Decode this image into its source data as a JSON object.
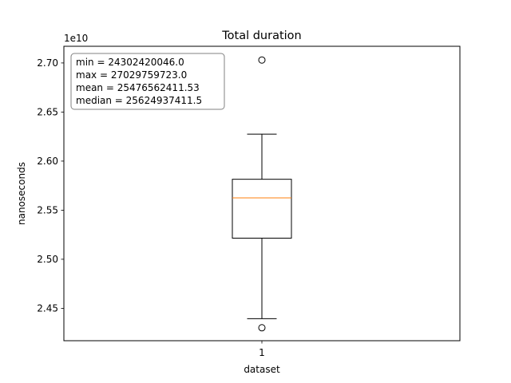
{
  "chart_data": {
    "type": "box",
    "title": "Total duration",
    "xlabel": "dataset",
    "ylabel": "nanoseconds",
    "offset_label": "1e10",
    "scale": 10000000000,
    "categories": [
      "1"
    ],
    "ylim": [
      2.417,
      2.717
    ],
    "yticks": [
      {
        "value": 2.45,
        "label": "2.45"
      },
      {
        "value": 2.5,
        "label": "2.50"
      },
      {
        "value": 2.55,
        "label": "2.55"
      },
      {
        "value": 2.6,
        "label": "2.60"
      },
      {
        "value": 2.65,
        "label": "2.65"
      },
      {
        "value": 2.7,
        "label": "2.70"
      }
    ],
    "box": {
      "whisker_low": 2.4395,
      "q1": 2.5215,
      "median": 2.5625,
      "q3": 2.5815,
      "whisker_high": 2.6275,
      "outliers": [
        2.703,
        2.4302
      ]
    },
    "stats": [
      "min = 24302420046.0",
      "max = 27029759723.0",
      "mean = 25476562411.53",
      "median = 25624937411.5"
    ],
    "colors": {
      "box": "#000000",
      "median": "#ff7f0e",
      "stats_border": "#808080"
    }
  }
}
